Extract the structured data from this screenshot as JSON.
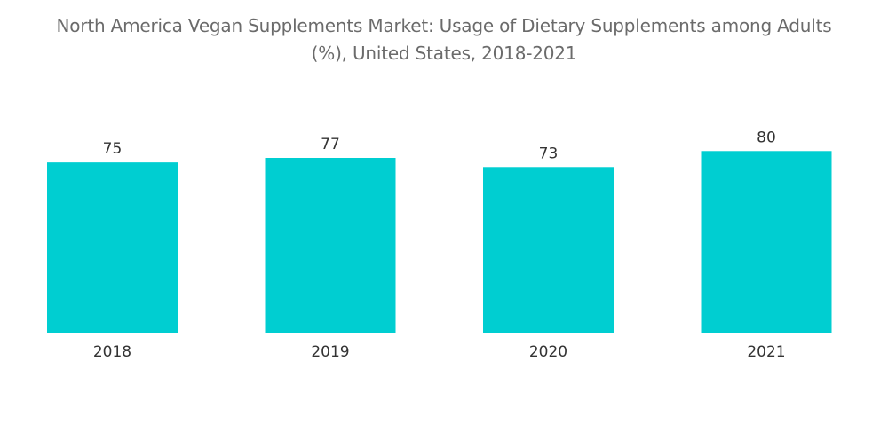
{
  "title": {
    "line1": "North America Vegan Supplements Market: Usage of Dietary Supplements among Adults",
    "line2": "(%), United States, 2018-2021"
  },
  "colors": {
    "bar": "#00CED1",
    "text": "#333333",
    "title": "#6b6b6b"
  },
  "chart_data": {
    "type": "bar",
    "title": "North America Vegan Supplements Market: Usage of Dietary Supplements among Adults (%), United States, 2018-2021",
    "categories": [
      "2018",
      "2019",
      "2020",
      "2021"
    ],
    "values": [
      75,
      77,
      73,
      80
    ],
    "xlabel": "",
    "ylabel": "",
    "ylim": [
      0,
      98
    ],
    "grid": false,
    "legend": "none",
    "data_labels": true
  }
}
